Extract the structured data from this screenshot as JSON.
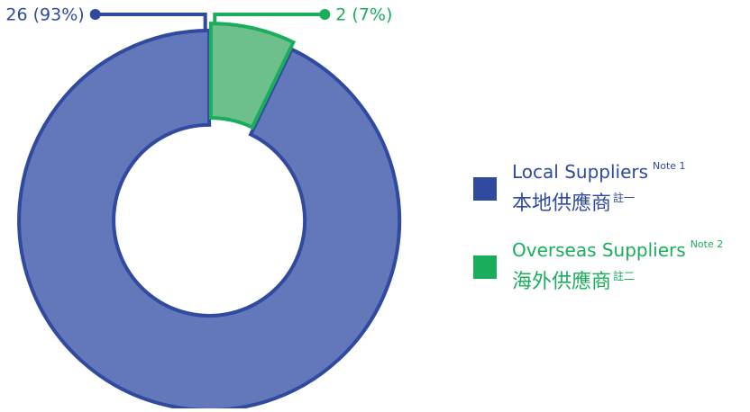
{
  "chart_data": {
    "type": "donut",
    "categories": [
      "Local Suppliers",
      "Overseas Suppliers"
    ],
    "category_notes": [
      "Note 1",
      "Note 2"
    ],
    "categories_zh": [
      "本地供應商",
      "海外供應商"
    ],
    "category_notes_zh": [
      "註一",
      "註二"
    ],
    "values": [
      26,
      2
    ],
    "value_labels": [
      "26 (93%)",
      "2 (7%)"
    ],
    "colors": [
      "#2f4a9e",
      "#1aae5c"
    ],
    "fill_colors": [
      "#6378bb",
      "#6dc08c"
    ]
  }
}
